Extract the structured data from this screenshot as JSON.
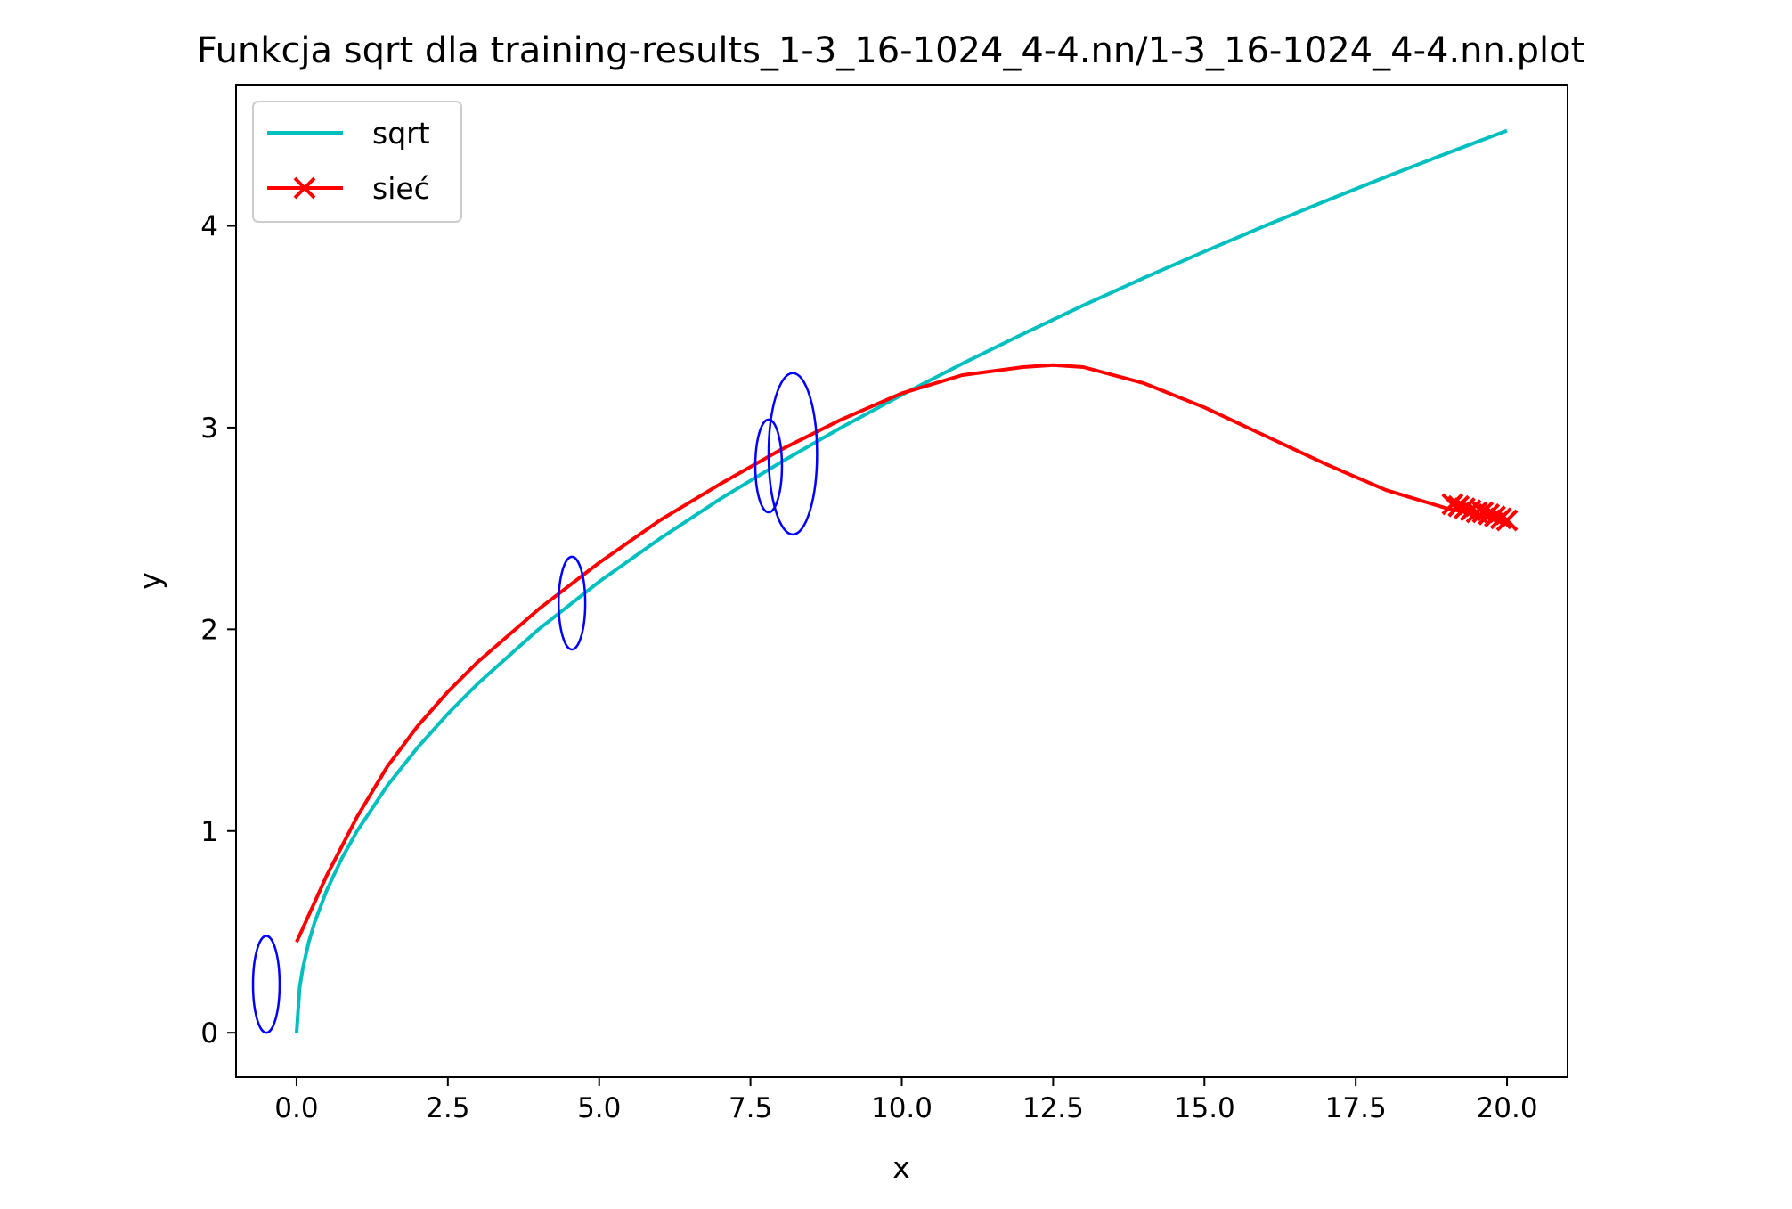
{
  "chart_data": {
    "type": "line",
    "title": "Funkcja sqrt dla training-results_1-3_16-1024_4-4.nn/1-3_16-1024_4-4.nn.plot",
    "xlabel": "x",
    "ylabel": "y",
    "xlim": [
      -1.0,
      21.0
    ],
    "ylim": [
      -0.22,
      4.7
    ],
    "x_ticks": [
      0.0,
      2.5,
      5.0,
      7.5,
      10.0,
      12.5,
      15.0,
      17.5,
      20.0
    ],
    "x_tick_labels": [
      "0.0",
      "2.5",
      "5.0",
      "7.5",
      "10.0",
      "12.5",
      "15.0",
      "17.5",
      "20.0"
    ],
    "y_ticks": [
      0,
      1,
      2,
      3,
      4
    ],
    "y_tick_labels": [
      "0",
      "1",
      "2",
      "3",
      "4"
    ],
    "grid": false,
    "legend_position": "top-left",
    "series": [
      {
        "name": "sqrt",
        "color": "#00bfbf",
        "marker": "none",
        "x": [
          0.0,
          0.05,
          0.1,
          0.2,
          0.3,
          0.5,
          0.75,
          1.0,
          1.5,
          2.0,
          2.5,
          3.0,
          4.0,
          5.0,
          6.0,
          7.0,
          8.0,
          9.0,
          10.0,
          11.0,
          12.0,
          13.0,
          14.0,
          15.0,
          16.0,
          17.0,
          18.0,
          19.0,
          20.0
        ],
        "y": [
          0.0,
          0.224,
          0.316,
          0.447,
          0.548,
          0.707,
          0.866,
          1.0,
          1.225,
          1.414,
          1.581,
          1.732,
          2.0,
          2.236,
          2.449,
          2.646,
          2.828,
          3.0,
          3.162,
          3.317,
          3.464,
          3.606,
          3.742,
          3.873,
          4.0,
          4.123,
          4.243,
          4.359,
          4.472
        ]
      },
      {
        "name": "sieć",
        "color": "#ff0000",
        "marker": "x",
        "x": [
          0.0,
          0.5,
          1.0,
          1.5,
          2.0,
          2.5,
          3.0,
          4.0,
          5.0,
          6.0,
          7.0,
          8.0,
          9.0,
          10.0,
          11.0,
          12.0,
          12.5,
          13.0,
          14.0,
          15.0,
          16.0,
          17.0,
          18.0,
          19.0,
          19.5,
          20.0
        ],
        "y": [
          0.45,
          0.78,
          1.07,
          1.32,
          1.52,
          1.69,
          1.84,
          2.1,
          2.33,
          2.54,
          2.72,
          2.89,
          3.04,
          3.17,
          3.26,
          3.3,
          3.31,
          3.3,
          3.22,
          3.1,
          2.96,
          2.82,
          2.69,
          2.6,
          2.57,
          2.54
        ],
        "marker_points": [
          [
            19.1,
            2.62
          ],
          [
            19.2,
            2.61
          ],
          [
            19.3,
            2.6
          ],
          [
            19.4,
            2.59
          ],
          [
            19.5,
            2.58
          ],
          [
            19.6,
            2.58
          ],
          [
            19.7,
            2.57
          ],
          [
            19.8,
            2.56
          ],
          [
            19.9,
            2.55
          ],
          [
            20.0,
            2.54
          ]
        ]
      }
    ],
    "annotations": [
      {
        "type": "ellipse",
        "color": "#0000ff",
        "cx": -0.5,
        "cy": 0.24,
        "rx": 0.22,
        "ry": 0.24
      },
      {
        "type": "ellipse",
        "color": "#0000ff",
        "cx": 4.55,
        "cy": 2.13,
        "rx": 0.22,
        "ry": 0.23
      },
      {
        "type": "ellipse",
        "color": "#0000ff",
        "cx": 7.8,
        "cy": 2.81,
        "rx": 0.22,
        "ry": 0.23
      },
      {
        "type": "ellipse",
        "color": "#0000ff",
        "cx": 8.2,
        "cy": 2.87,
        "rx": 0.4,
        "ry": 0.4
      }
    ]
  }
}
